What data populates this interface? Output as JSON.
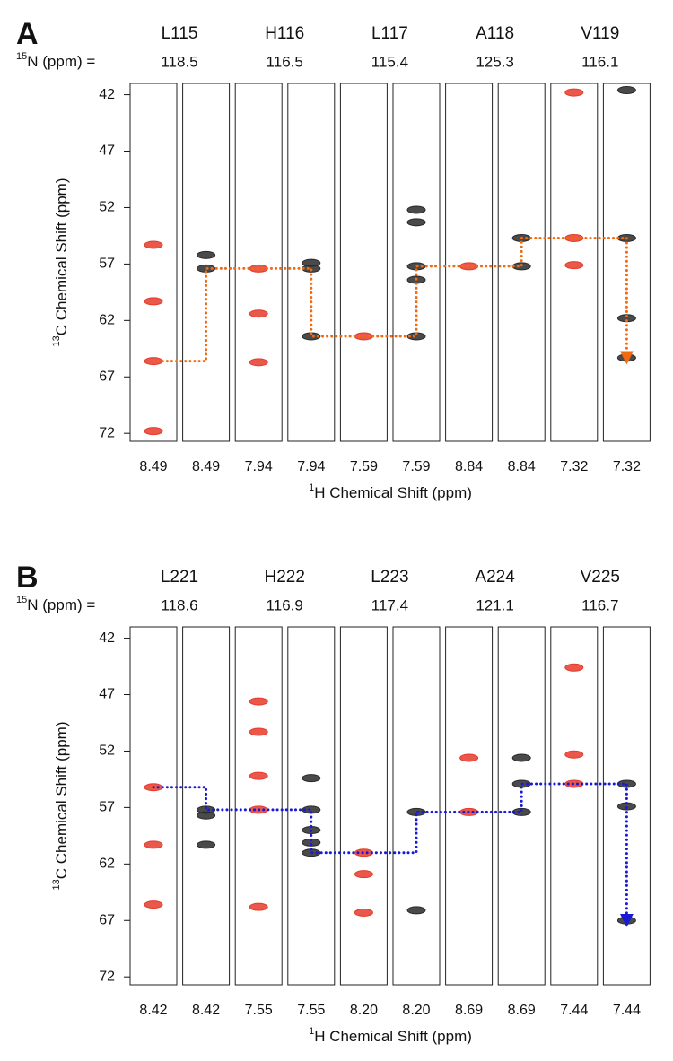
{
  "chart_data": [
    {
      "type": "strip",
      "label": "A",
      "n_label": {
        "sup": "15",
        "text": "N (ppm) ="
      },
      "ylabel": {
        "sup": "13",
        "text": "C Chemical Shift (ppm)"
      },
      "xlabel": {
        "sup": "1",
        "text": "H Chemical Shift (ppm)"
      },
      "ylim": [
        72.7,
        41
      ],
      "yticks": [
        42,
        47,
        52,
        57,
        62,
        67,
        72
      ],
      "walk_color": "#f26a10",
      "red_color": "#e53b2c",
      "black_color": "#2a2a2a",
      "residues": [
        {
          "name": "L115",
          "n": 118.5,
          "h": 8.49,
          "ca_prev": 65.6,
          "ca": 57.4,
          "red_other": [
            55.3,
            60.3,
            71.8
          ],
          "black_other": [
            56.2
          ]
        },
        {
          "name": "H116",
          "n": 116.5,
          "h": 7.94,
          "ca_prev": 57.4,
          "ca": 63.4,
          "red_other": [
            61.4,
            65.7
          ],
          "black_other": [
            57.4,
            56.9
          ]
        },
        {
          "name": "L117",
          "n": 115.4,
          "h": 7.59,
          "ca_prev": 63.4,
          "ca": 57.2,
          "red_other": [],
          "black_other": [
            63.4,
            53.3,
            58.4,
            52.2
          ]
        },
        {
          "name": "A118",
          "n": 125.3,
          "h": 8.84,
          "ca_prev": 57.2,
          "ca": 54.7,
          "red_other": [],
          "black_other": [
            57.2
          ]
        },
        {
          "name": "V119",
          "n": 116.1,
          "h": 7.32,
          "ca_prev": 54.7,
          "ca": 65.3,
          "red_other": [
            57.1,
            41.8
          ],
          "black_other": [
            54.7,
            41.6,
            61.8
          ]
        }
      ]
    },
    {
      "type": "strip",
      "label": "B",
      "n_label": {
        "sup": "15",
        "text": "N (ppm) ="
      },
      "ylabel": {
        "sup": "13",
        "text": "C Chemical Shift (ppm)"
      },
      "xlabel": {
        "sup": "1",
        "text": "H Chemical Shift (ppm)"
      },
      "ylim": [
        72.7,
        41
      ],
      "yticks": [
        42,
        47,
        52,
        57,
        62,
        67,
        72
      ],
      "walk_color": "#1a1ad6",
      "red_color": "#e53b2c",
      "black_color": "#2a2a2a",
      "residues": [
        {
          "name": "L221",
          "n": 118.6,
          "h": 8.42,
          "ca_prev": 55.2,
          "ca": 57.2,
          "red_other": [
            60.3,
            65.6
          ],
          "black_other": [
            57.7,
            60.3
          ]
        },
        {
          "name": "H222",
          "n": 116.9,
          "h": 7.55,
          "ca_prev": 57.2,
          "ca": 61.0,
          "red_other": [
            47.6,
            50.3,
            54.2,
            65.8
          ],
          "black_other": [
            57.2,
            59.0,
            60.1,
            54.4
          ]
        },
        {
          "name": "L223",
          "n": 117.4,
          "h": {
            "value": 8.2,
            "label": "8.20"
          },
          "ca_prev": 61.0,
          "ca": 57.4,
          "red_other": [
            62.9,
            66.3
          ],
          "black_other": [
            66.1
          ]
        },
        {
          "name": "A224",
          "n": 121.1,
          "h": 8.69,
          "ca_prev": 57.4,
          "ca": 54.9,
          "red_other": [
            52.6
          ],
          "black_other": [
            52.6,
            57.4
          ]
        },
        {
          "name": "V225",
          "n": 116.7,
          "h": 7.44,
          "ca_prev": 54.9,
          "ca": 67.0,
          "red_other": [
            44.6,
            52.3
          ],
          "black_other": [
            54.9,
            56.9
          ]
        }
      ]
    }
  ]
}
